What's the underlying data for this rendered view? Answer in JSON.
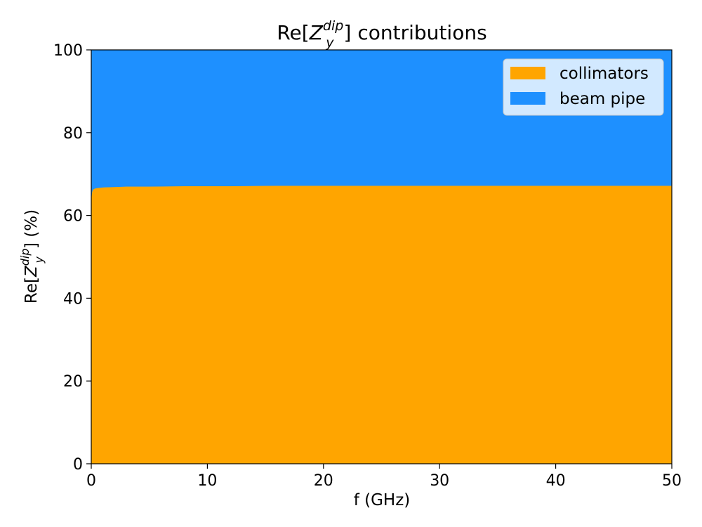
{
  "chart_data": {
    "type": "area",
    "stacked": true,
    "normalized_percent": true,
    "title": {
      "prefix": "Re[",
      "symbol": "Z",
      "sub": "y",
      "sup": "dip",
      "suffix": "] contributions"
    },
    "xlabel": "f (GHz)",
    "ylabel": {
      "prefix": "Re[",
      "symbol": "Z",
      "sub": "y",
      "sup": "dip",
      "suffix": "] (%)"
    },
    "xlim": [
      0,
      50
    ],
    "ylim": [
      0,
      100
    ],
    "xticks": [
      0,
      10,
      20,
      30,
      40,
      50
    ],
    "yticks": [
      0,
      20,
      40,
      60,
      80,
      100
    ],
    "grid": false,
    "legend_position": "top-right",
    "x": [
      0,
      0.05,
      0.1,
      0.2,
      0.4,
      0.7,
      1,
      2,
      3,
      5,
      8,
      12,
      16,
      20,
      25,
      30,
      35,
      40,
      45,
      50
    ],
    "series": [
      {
        "name": "collimators",
        "color": "#FFA500",
        "values": [
          64.0,
          65.5,
          66.0,
          66.4,
          66.6,
          66.7,
          66.8,
          66.9,
          67.0,
          67.0,
          67.1,
          67.1,
          67.2,
          67.2,
          67.2,
          67.2,
          67.2,
          67.2,
          67.2,
          67.2
        ]
      },
      {
        "name": "beam pipe",
        "color": "#1E90FF",
        "values": [
          36.0,
          34.5,
          34.0,
          33.6,
          33.4,
          33.3,
          33.2,
          33.1,
          33.0,
          33.0,
          32.9,
          32.9,
          32.8,
          32.8,
          32.8,
          32.8,
          32.8,
          32.8,
          32.8,
          32.8
        ]
      }
    ]
  }
}
